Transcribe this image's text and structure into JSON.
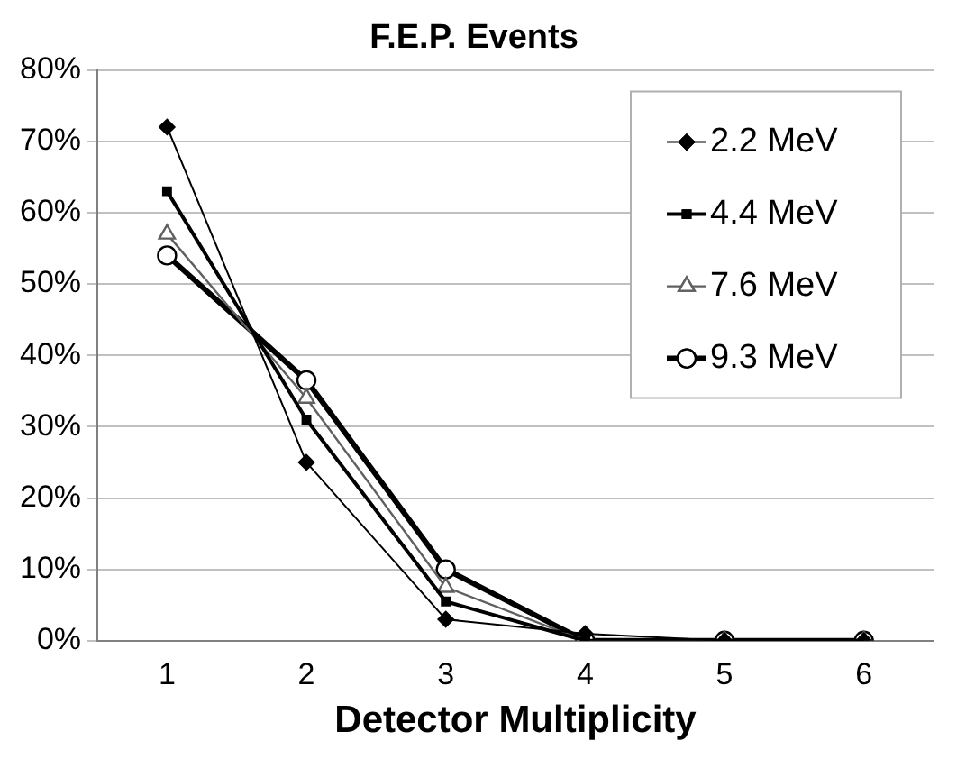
{
  "chart_data": {
    "type": "line",
    "title": "F.E.P. Events",
    "xlabel": "Detector Multiplicity",
    "categories": [
      "1",
      "2",
      "3",
      "4",
      "5",
      "6"
    ],
    "series": [
      {
        "name": "2.2 MeV",
        "color": "#000000",
        "marker": "diamond",
        "values": [
          72,
          25,
          3,
          1,
          0,
          0
        ]
      },
      {
        "name": "4.4 MeV",
        "color": "#000000",
        "marker": "square",
        "values": [
          63,
          31,
          5.5,
          0,
          0,
          0
        ]
      },
      {
        "name": "7.6 MeV",
        "color": "#606060",
        "marker": "triangle",
        "values": [
          57,
          34,
          7.5,
          0,
          0,
          0
        ]
      },
      {
        "name": "9.3 MeV",
        "color": "#000000",
        "marker": "circle",
        "values": [
          54,
          36.5,
          10,
          0,
          0,
          0
        ]
      }
    ],
    "ylim": [
      0,
      80
    ],
    "yticks": [
      {
        "value": 0,
        "label": "0%"
      },
      {
        "value": 10,
        "label": "10%"
      },
      {
        "value": 20,
        "label": "20%"
      },
      {
        "value": 30,
        "label": "30%"
      },
      {
        "value": 40,
        "label": "40%"
      },
      {
        "value": 50,
        "label": "50%"
      },
      {
        "value": 60,
        "label": "60%"
      },
      {
        "value": 70,
        "label": "70%"
      },
      {
        "value": 80,
        "label": "80%"
      }
    ],
    "grid": "y",
    "legend": "top right",
    "line_style": "solid"
  }
}
